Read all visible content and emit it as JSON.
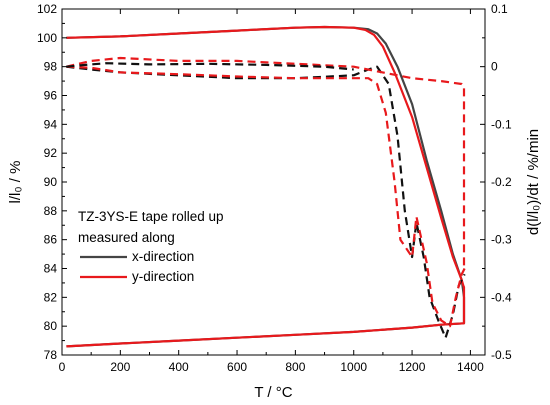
{
  "chart_data": {
    "type": "line",
    "xlabel": "T / °C",
    "ylabel_left": "l/l₀ / %",
    "ylabel_right": "d(l/l₀)/dt / %/min",
    "xlim": [
      0,
      1450
    ],
    "ylim_left": [
      78,
      102
    ],
    "ylim_right": [
      -0.5,
      0.1
    ],
    "x_ticks": [
      0,
      200,
      400,
      600,
      800,
      1000,
      1200,
      1400
    ],
    "y_left_ticks": [
      78,
      80,
      82,
      84,
      86,
      88,
      90,
      92,
      94,
      96,
      98,
      100,
      102
    ],
    "y_right_ticks": [
      0.1,
      0.0,
      -0.1,
      -0.2,
      -0.3,
      -0.4,
      -0.5
    ],
    "legend": {
      "title_lines": [
        "TZ-3YS-E tape rolled up",
        "measured along"
      ],
      "entries": [
        {
          "label": "x-direction",
          "color": "#444444"
        },
        {
          "label": "y-direction",
          "color": "#e8191c"
        }
      ],
      "placement": "bottom-left"
    },
    "series": [
      {
        "name": "x-direction",
        "color": "#444444",
        "axis": "left",
        "style": "solid",
        "x": [
          15,
          200,
          400,
          600,
          800,
          900,
          1000,
          1050,
          1080,
          1110,
          1150,
          1200,
          1250,
          1300,
          1340,
          1370,
          1375,
          1378,
          1378,
          1300,
          1200,
          1000,
          800,
          600,
          400,
          200,
          15
        ],
        "y": [
          100.0,
          100.1,
          100.3,
          100.5,
          100.7,
          100.75,
          100.7,
          100.6,
          100.3,
          99.6,
          98.0,
          95.4,
          91.5,
          88.0,
          85.0,
          83.2,
          82.5,
          82.0,
          80.2,
          80.1,
          79.9,
          79.6,
          79.4,
          79.2,
          79.0,
          78.8,
          78.6
        ]
      },
      {
        "name": "y-direction",
        "color": "#e8191c",
        "axis": "left",
        "style": "solid",
        "x": [
          15,
          200,
          400,
          600,
          800,
          900,
          1000,
          1040,
          1070,
          1100,
          1140,
          1200,
          1250,
          1300,
          1340,
          1370,
          1376,
          1378,
          1378,
          1300,
          1200,
          1000,
          800,
          600,
          400,
          200,
          15
        ],
        "y": [
          100.0,
          100.1,
          100.3,
          100.5,
          100.7,
          100.75,
          100.7,
          100.55,
          100.2,
          99.4,
          97.6,
          94.5,
          91.0,
          87.5,
          84.8,
          83.2,
          82.8,
          82.7,
          80.2,
          80.1,
          79.9,
          79.6,
          79.4,
          79.2,
          79.0,
          78.8,
          78.6
        ]
      },
      {
        "name": "x-direction",
        "color": "#111111",
        "axis": "right",
        "style": "dashed",
        "x": [
          15,
          100,
          200,
          400,
          600,
          800,
          1000,
          1050,
          1080,
          1120,
          1150,
          1175,
          1200,
          1215,
          1240,
          1260,
          1290,
          1315,
          1340,
          1360,
          1380
        ],
        "y": [
          0.0,
          -0.005,
          -0.01,
          -0.015,
          -0.02,
          -0.02,
          -0.015,
          -0.005,
          0.0,
          -0.03,
          -0.12,
          -0.25,
          -0.33,
          -0.27,
          -0.33,
          -0.4,
          -0.44,
          -0.47,
          -0.43,
          -0.38,
          -0.36
        ]
      },
      {
        "name": "y-direction",
        "color": "#e8191c",
        "axis": "right",
        "style": "dashed",
        "x": [
          15,
          100,
          200,
          400,
          600,
          800,
          1000,
          1050,
          1080,
          1110,
          1140,
          1160,
          1200,
          1215,
          1250,
          1270,
          1300,
          1330,
          1350,
          1370,
          1380
        ],
        "y": [
          0.0,
          -0.002,
          -0.01,
          -0.013,
          -0.017,
          -0.02,
          -0.02,
          -0.02,
          -0.03,
          -0.08,
          -0.2,
          -0.3,
          -0.33,
          -0.26,
          -0.34,
          -0.41,
          -0.44,
          -0.45,
          -0.4,
          -0.36,
          -0.35
        ]
      },
      {
        "name": "y-direction",
        "color": "#e8191c",
        "axis": "right",
        "style": "dashed",
        "x": [
          15,
          100,
          200,
          400,
          600,
          800,
          1000,
          1200,
          1300,
          1370,
          1378,
          1378
        ],
        "y": [
          0.0,
          0.01,
          0.015,
          0.01,
          0.01,
          0.005,
          0.0,
          -0.02,
          -0.025,
          -0.03,
          -0.035,
          -0.35
        ]
      },
      {
        "name": "x-direction",
        "color": "#111111",
        "axis": "right",
        "style": "dashed",
        "x": [
          15,
          80,
          150,
          300,
          500,
          700,
          900,
          1000
        ],
        "y": [
          0.0,
          0.003,
          0.006,
          0.004,
          0.005,
          0.003,
          0.0,
          -0.005
        ]
      }
    ]
  }
}
